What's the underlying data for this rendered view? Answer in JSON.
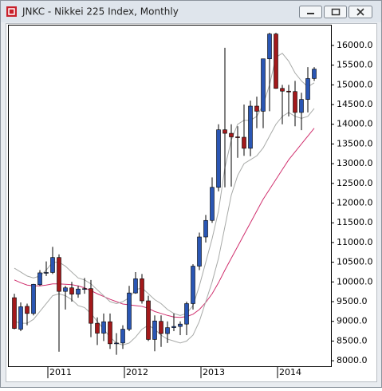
{
  "chart_data": {
    "type": "candlestick",
    "title": "JNKC - Nikkei 225 Index, Monthly",
    "up_color": "#2a56b4",
    "down_color": "#a3191b",
    "grid": false,
    "categories": [
      null,
      null,
      null,
      null,
      null,
      "2011",
      null,
      null,
      null,
      null,
      null,
      null,
      null,
      null,
      null,
      null,
      null,
      "2012",
      null,
      null,
      null,
      null,
      null,
      null,
      null,
      null,
      null,
      null,
      null,
      "2013",
      null,
      null,
      null,
      null,
      null,
      null,
      null,
      null,
      null,
      null,
      null,
      "2014",
      null,
      null,
      null,
      null,
      null,
      null
    ],
    "open": [
      9600,
      8800,
      9380,
      9200,
      9930,
      10230,
      10240,
      10620,
      9760,
      9850,
      9690,
      9810,
      9830,
      8950,
      8700,
      8990,
      8430,
      8450,
      8800,
      9720,
      10080,
      9520,
      8540,
      9000,
      8690,
      8840,
      8870,
      8930,
      9450,
      10400,
      11140,
      11560,
      12400,
      13860,
      13770,
      13680,
      13670,
      13390,
      14460,
      14330,
      15660,
      16290,
      14910,
      14840,
      14830,
      14300,
      14630,
      15160
    ],
    "high": [
      9700,
      9480,
      9450,
      9950,
      10300,
      10520,
      10890,
      10700,
      9900,
      10000,
      9900,
      10100,
      10050,
      9100,
      9200,
      9200,
      8700,
      8900,
      9900,
      10250,
      10200,
      9650,
      9150,
      9150,
      9000,
      9200,
      9000,
      9500,
      10450,
      11250,
      11700,
      12650,
      14000,
      15940,
      14000,
      13950,
      14500,
      14600,
      14700,
      15600,
      16320,
      16320,
      15000,
      15000,
      15100,
      14800,
      15450,
      15450
    ],
    "low": [
      8800,
      8750,
      8900,
      9150,
      9900,
      10150,
      10200,
      8230,
      9300,
      9500,
      9600,
      9700,
      8600,
      8400,
      8500,
      8300,
      8150,
      8300,
      8750,
      9700,
      9450,
      8500,
      8240,
      8350,
      8450,
      8750,
      8650,
      8650,
      9300,
      10300,
      11000,
      11500,
      12300,
      12400,
      12420,
      13150,
      13200,
      13190,
      13900,
      13900,
      14330,
      14900,
      14000,
      14200,
      13950,
      13850,
      14300,
      15100
    ],
    "close": [
      8820,
      9370,
      9200,
      9940,
      10230,
      10240,
      10620,
      9760,
      9850,
      9690,
      9820,
      9830,
      8950,
      8700,
      8990,
      8430,
      8450,
      8800,
      9720,
      10080,
      9520,
      8540,
      9010,
      8690,
      8840,
      8870,
      8930,
      9450,
      10400,
      11140,
      11560,
      12400,
      13860,
      13770,
      13680,
      13670,
      13390,
      14460,
      14330,
      15660,
      16290,
      14910,
      14840,
      14830,
      14300,
      14630,
      15160,
      15400
    ],
    "overlays": [
      {
        "color": "#d0306e",
        "values": [
          10050,
          9980,
          9920,
          9900,
          9900,
          9920,
          9950,
          9950,
          9940,
          9930,
          9900,
          9850,
          9780,
          9700,
          9630,
          9560,
          9500,
          9440,
          9420,
          9400,
          9380,
          9330,
          9250,
          9200,
          9150,
          9110,
          9100,
          9120,
          9180,
          9300,
          9480,
          9700,
          9980,
          10300,
          10600,
          10900,
          11200,
          11500,
          11800,
          12100,
          12350,
          12600,
          12850,
          13100,
          13300,
          13500,
          13700,
          13900
        ]
      },
      {
        "color": "#a8aaa8",
        "values": [
          10350,
          10250,
          10150,
          10100,
          10150,
          10300,
          10500,
          10500,
          10400,
          10250,
          10100,
          10050,
          9950,
          9800,
          9650,
          9500,
          9450,
          9500,
          9600,
          9800,
          9850,
          9700,
          9550,
          9450,
          9300,
          9200,
          9150,
          9200,
          9400,
          9900,
          10500,
          11100,
          11800,
          12900,
          13600,
          14000,
          14100,
          14100,
          14200,
          14500,
          15000,
          15700,
          15800,
          15600,
          15300,
          15100,
          14950,
          15050
        ]
      },
      {
        "color": "#a8aaa8",
        "values": [
          9000,
          8950,
          8950,
          9050,
          9250,
          9450,
          9650,
          9700,
          9650,
          9550,
          9400,
          9350,
          9200,
          9000,
          8800,
          8600,
          8450,
          8400,
          8450,
          8600,
          8800,
          8900,
          8800,
          8650,
          8550,
          8500,
          8450,
          8500,
          8650,
          9000,
          9500,
          10000,
          10600,
          11400,
          12200,
          12700,
          13000,
          13100,
          13200,
          13400,
          13700,
          14000,
          14200,
          14300,
          14200,
          14150,
          14200,
          14400
        ]
      }
    ],
    "ylim": [
      7840,
      16525
    ],
    "yticks": [
      {
        "value": 8000,
        "label": "8000.0"
      },
      {
        "value": 8500,
        "label": "8500.0"
      },
      {
        "value": 9000,
        "label": "9000.0"
      },
      {
        "value": 9500,
        "label": "9500.0"
      },
      {
        "value": 10000,
        "label": "10000.0"
      },
      {
        "value": 10500,
        "label": "10500.0"
      },
      {
        "value": 11000,
        "label": "11000.0"
      },
      {
        "value": 11500,
        "label": "11500.0"
      },
      {
        "value": 12000,
        "label": "12000.0"
      },
      {
        "value": 12500,
        "label": "12500.0"
      },
      {
        "value": 13000,
        "label": "13000.0"
      },
      {
        "value": 13500,
        "label": "13500.0"
      },
      {
        "value": 14000,
        "label": "14000.0"
      },
      {
        "value": 14500,
        "label": "14500.0"
      },
      {
        "value": 15000,
        "label": "15000.0"
      },
      {
        "value": 15500,
        "label": "15500.0"
      },
      {
        "value": 16000,
        "label": "16000.0"
      }
    ]
  }
}
